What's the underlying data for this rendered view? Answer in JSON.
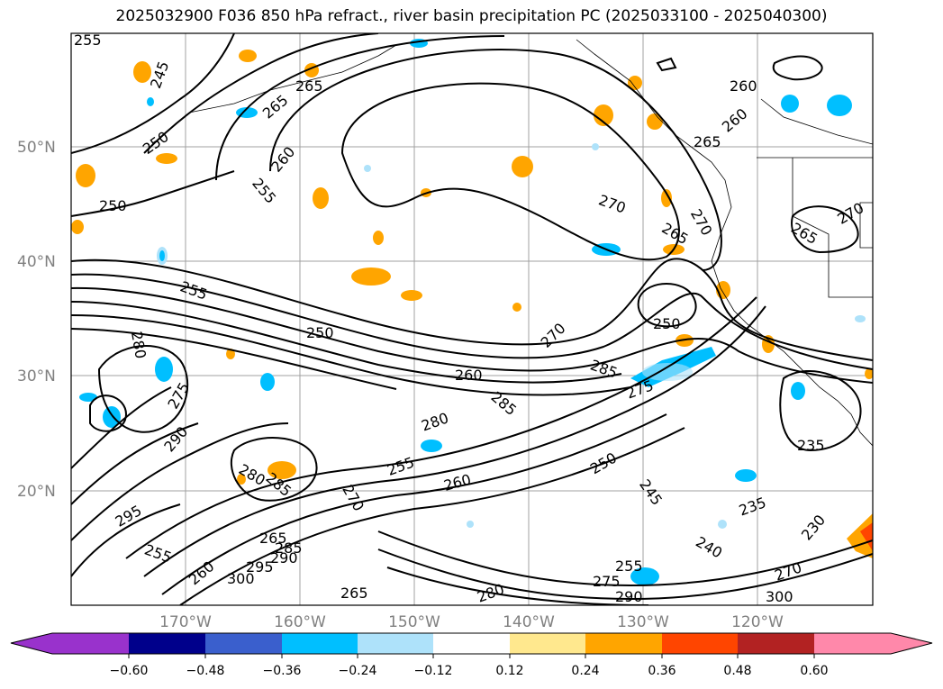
{
  "title": "2025032900 F036 850 hPa refract., river basin precipitation PC (2025033100 - 2025040300)",
  "map": {
    "lat_labels": [
      "50°N",
      "40°N",
      "30°N",
      "20°N"
    ],
    "lon_labels": [
      "170°W",
      "160°W",
      "150°W",
      "140°W",
      "130°W",
      "120°W"
    ],
    "contour_labels": [
      "255",
      "245",
      "265",
      "265",
      "250",
      "260",
      "255",
      "250",
      "260",
      "270",
      "265",
      "260",
      "265",
      "270",
      "270",
      "265",
      "255",
      "250",
      "280",
      "250",
      "275",
      "270",
      "260",
      "285",
      "285",
      "275",
      "280",
      "290",
      "255",
      "280",
      "260",
      "250",
      "245",
      "295",
      "285",
      "270",
      "235",
      "235",
      "230",
      "255",
      "265",
      "285",
      "290",
      "260",
      "300",
      "295",
      "240",
      "255",
      "275",
      "290",
      "265",
      "280",
      "300",
      "270"
    ]
  },
  "colorbar": {
    "ticks": [
      "−0.60",
      "−0.48",
      "−0.36",
      "−0.24",
      "−0.12",
      "0.12",
      "0.24",
      "0.36",
      "0.48",
      "0.60"
    ],
    "colors": [
      "#9932cc",
      "#00008b",
      "#3a5fcd",
      "#00bfff",
      "#aee2fa",
      "#ffffff",
      "#ffe88e",
      "#ffa500",
      "#ff4500",
      "#b22222",
      "#ff88aa"
    ]
  }
}
